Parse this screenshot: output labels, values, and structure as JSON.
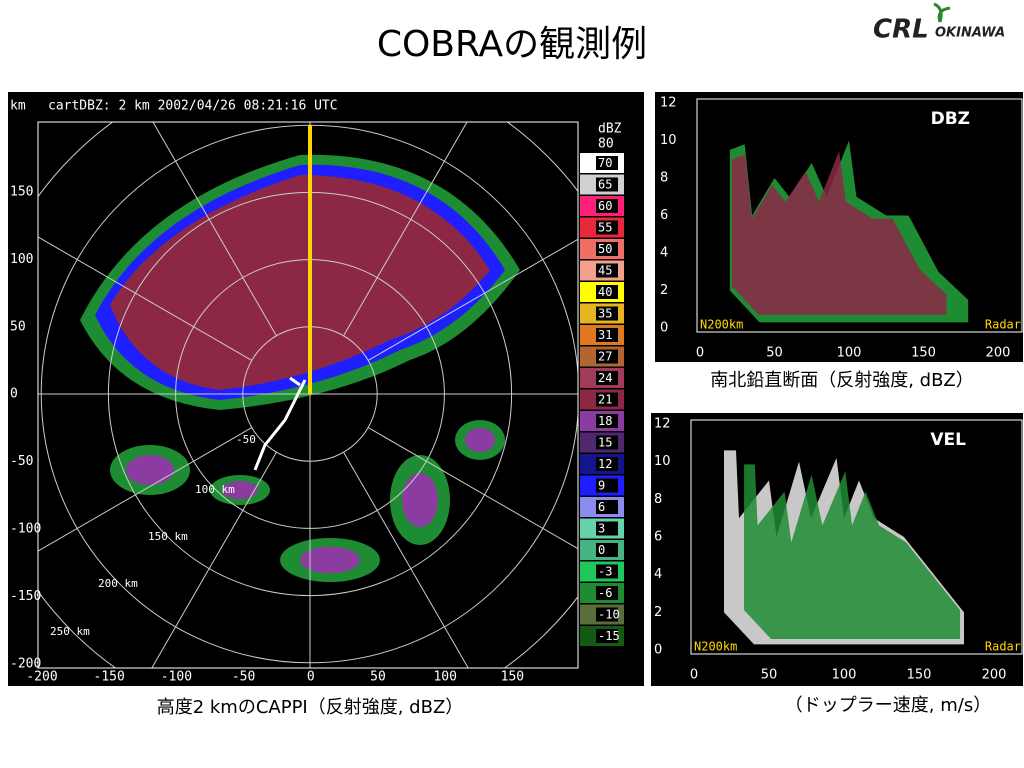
{
  "header": {
    "title": "COBRAの観測例",
    "logo": {
      "mark": "CRL",
      "text": "OKINAWA"
    }
  },
  "cappi": {
    "unit": "km",
    "info": "cartDBZ: 2 km 2002/04/26 08:21:16 UTC",
    "xticks": [
      "-200",
      "-150",
      "-100",
      "-50",
      "0",
      "50",
      "100",
      "150"
    ],
    "yticks": [
      "150",
      "100",
      "50",
      "0",
      "-50",
      "-100",
      "-150",
      "-200"
    ],
    "rings": [
      "-50",
      "100 km",
      "150 km",
      "200 km",
      "250 km"
    ],
    "colorbar": {
      "unit": "dBZ",
      "top": "80",
      "levels": [
        {
          "label": "70",
          "color": "#ffffff"
        },
        {
          "label": "65",
          "color": "#d0d0d0"
        },
        {
          "label": "60",
          "color": "#ff1e78"
        },
        {
          "label": "55",
          "color": "#e8283c"
        },
        {
          "label": "50",
          "color": "#f06e64"
        },
        {
          "label": "45",
          "color": "#f5a08c"
        },
        {
          "label": "40",
          "color": "#ffff00"
        },
        {
          "label": "35",
          "color": "#e6b41e"
        },
        {
          "label": "31",
          "color": "#e07820"
        },
        {
          "label": "27",
          "color": "#b46432"
        },
        {
          "label": "24",
          "color": "#a03c5a"
        },
        {
          "label": "21",
          "color": "#8c2846"
        },
        {
          "label": "18",
          "color": "#8c3ca0"
        },
        {
          "label": "15",
          "color": "#50286e"
        },
        {
          "label": "12",
          "color": "#14148c"
        },
        {
          "label": "9",
          "color": "#1e1eff"
        },
        {
          "label": "6",
          "color": "#8c8cf0"
        },
        {
          "label": "3",
          "color": "#64d2aa"
        },
        {
          "label": "0",
          "color": "#46b482"
        },
        {
          "label": "-3",
          "color": "#1ec85a"
        },
        {
          "label": "-6",
          "color": "#1e8c32"
        },
        {
          "label": "-10",
          "color": "#5a6e3c"
        },
        {
          "label": "-15",
          "color": "#145a14"
        }
      ]
    },
    "caption": "高度2 kmのCAPPI（反射強度, dBZ）"
  },
  "dbz": {
    "label": "DBZ",
    "yticks": [
      "12",
      "10",
      "8",
      "6",
      "4",
      "2",
      "0"
    ],
    "xticks": [
      "0",
      "50",
      "100",
      "150",
      "200"
    ],
    "left": "N200km",
    "right": "Radar",
    "caption": "南北鉛直断面（反射強度, dBZ）"
  },
  "vel": {
    "label": "VEL",
    "yticks": [
      "12",
      "10",
      "8",
      "6",
      "4",
      "2",
      "0"
    ],
    "xticks": [
      "0",
      "50",
      "100",
      "150",
      "200"
    ],
    "left": "N200km",
    "right": "Radar",
    "caption": "（ドップラー速度, m/s）"
  }
}
